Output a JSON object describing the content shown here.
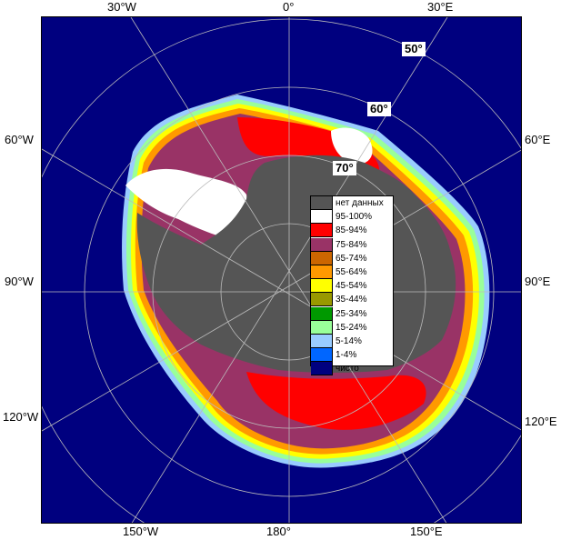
{
  "map": {
    "lon_labels": {
      "top_30w": "30°W",
      "top_0": "0°",
      "top_30e": "30°E",
      "left_60w": "60°W",
      "left_90w": "90°W",
      "left_120w": "120°W",
      "right_60e": "60°E",
      "right_90e": "90°E",
      "right_120e": "120°E",
      "bottom_150w": "150°W",
      "bottom_180": "180°",
      "bottom_150e": "150°E"
    },
    "lat_labels": {
      "lat50": "50°",
      "lat60": "60°",
      "lat70": "70°"
    },
    "colors": {
      "open_water": "#00007f",
      "land": "#555555",
      "graticule": "#000000"
    }
  },
  "legend": {
    "items": [
      {
        "label": "нет данных",
        "color": "#555555"
      },
      {
        "label": "95-100%",
        "color": "#ffffff"
      },
      {
        "label": "85-94%",
        "color": "#ff0000"
      },
      {
        "label": "75-84%",
        "color": "#993366"
      },
      {
        "label": "65-74%",
        "color": "#cc6600"
      },
      {
        "label": "55-64%",
        "color": "#ff9900"
      },
      {
        "label": "45-54%",
        "color": "#ffff00"
      },
      {
        "label": "35-44%",
        "color": "#999900"
      },
      {
        "label": "25-34%",
        "color": "#009900"
      },
      {
        "label": "15-24%",
        "color": "#99ff99"
      },
      {
        "label": "5-14%",
        "color": "#99ccff"
      },
      {
        "label": "1-4%",
        "color": "#0066ff"
      },
      {
        "label": "чисто",
        "color": "#00007f"
      }
    ]
  }
}
